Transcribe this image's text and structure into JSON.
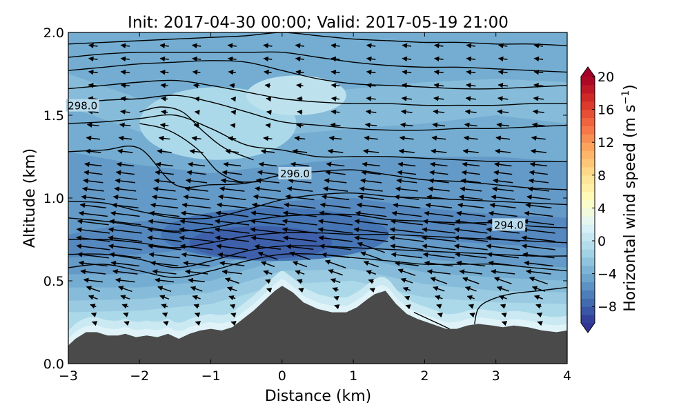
{
  "chart_data": {
    "type": "contour",
    "title": "Init: 2017-04-30 00:00; Valid: 2017-05-19 21:00",
    "xlabel": "Distance (km)",
    "ylabel": "Altitude (km)",
    "xlim": [
      -3,
      4
    ],
    "ylim": [
      0,
      2
    ],
    "xticks": [
      -3,
      -2,
      -1,
      0,
      1,
      2,
      3,
      4
    ],
    "xtick_labels": [
      "−3",
      "−2",
      "−1",
      "0",
      "1",
      "2",
      "3",
      "4"
    ],
    "yticks": [
      0.0,
      0.5,
      1.0,
      1.5,
      2.0
    ],
    "ytick_labels": [
      "0.0",
      "0.5",
      "1.0",
      "1.5",
      "2.0"
    ],
    "colorbar": {
      "label_main": "Horizontal wind speed (m s",
      "label_sup": "−1",
      "label_close": ")",
      "range": [
        -10,
        20
      ],
      "ticks": [
        -8,
        -4,
        0,
        4,
        8,
        12,
        16,
        20
      ],
      "tick_labels": [
        "−8",
        "−4",
        "0",
        "4",
        "8",
        "12",
        "16",
        "20"
      ],
      "colormap": "RdYlBu_r",
      "extend": "both"
    },
    "terrain": {
      "color": "#4a4a4a",
      "profile_x": [
        -3.0,
        -2.9,
        -2.75,
        -2.6,
        -2.45,
        -2.3,
        -2.2,
        -2.05,
        -1.9,
        -1.75,
        -1.6,
        -1.45,
        -1.3,
        -1.15,
        -1.0,
        -0.85,
        -0.7,
        -0.55,
        -0.4,
        -0.25,
        -0.1,
        0.0,
        0.15,
        0.3,
        0.5,
        0.7,
        0.9,
        1.05,
        1.2,
        1.3,
        1.45,
        1.6,
        1.75,
        1.9,
        2.1,
        2.3,
        2.45,
        2.6,
        2.75,
        2.95,
        3.1,
        3.25,
        3.45,
        3.65,
        3.85,
        4.0
      ],
      "profile_z": [
        0.11,
        0.15,
        0.19,
        0.19,
        0.17,
        0.17,
        0.18,
        0.16,
        0.17,
        0.16,
        0.18,
        0.15,
        0.18,
        0.2,
        0.21,
        0.2,
        0.22,
        0.27,
        0.32,
        0.38,
        0.44,
        0.47,
        0.43,
        0.37,
        0.33,
        0.31,
        0.31,
        0.34,
        0.39,
        0.42,
        0.44,
        0.36,
        0.3,
        0.27,
        0.24,
        0.21,
        0.21,
        0.23,
        0.24,
        0.23,
        0.22,
        0.23,
        0.22,
        0.2,
        0.19,
        0.2
      ]
    },
    "wind_fill": {
      "levels": [
        -10,
        -9,
        -8,
        -7,
        -6,
        -5,
        -4,
        -3,
        -2,
        -1,
        0,
        1,
        2
      ],
      "layers": [
        {
          "value": -1,
          "top_x": [
            -3.0,
            -2.0,
            -1.0,
            0.0,
            1.0,
            2.0,
            3.0,
            4.0
          ],
          "top_z": [
            0.31,
            0.32,
            0.36,
            0.48,
            0.5,
            0.4,
            0.37,
            0.36
          ]
        },
        {
          "value": -2,
          "top_x": [
            -3.0,
            -2.0,
            -1.0,
            0.0,
            1.0,
            2.0,
            3.0,
            4.0
          ],
          "top_z": [
            0.38,
            0.39,
            0.43,
            0.56,
            0.57,
            0.48,
            0.44,
            0.43
          ]
        },
        {
          "value": -3,
          "top_x": [
            -3.0,
            -2.0,
            -1.0,
            0.0,
            1.0,
            2.0,
            3.0,
            4.0
          ],
          "top_z": [
            0.46,
            0.46,
            0.5,
            0.63,
            0.65,
            0.55,
            0.52,
            0.5
          ]
        },
        {
          "value": -4,
          "top_x": [
            -3.0,
            -2.0,
            -1.0,
            0.0,
            1.0,
            2.0,
            3.0,
            4.0
          ],
          "top_z": [
            0.54,
            0.54,
            0.58,
            0.72,
            0.73,
            0.63,
            0.6,
            0.58
          ]
        },
        {
          "value": -5,
          "top_x": [
            -3.0,
            -2.0,
            -1.0,
            0.0,
            1.0,
            2.0,
            3.0,
            4.0
          ],
          "top_z": [
            0.64,
            0.66,
            0.7,
            0.82,
            0.84,
            0.75,
            0.72,
            0.7
          ]
        },
        {
          "value": -6,
          "top_x": [
            -3.0,
            -2.0,
            -1.0,
            0.0,
            1.0,
            2.0,
            3.0,
            4.0
          ],
          "top_z": [
            0.78,
            0.86,
            0.9,
            0.98,
            1.0,
            0.94,
            0.9,
            0.88
          ]
        }
      ],
      "upper": [
        {
          "value": -5,
          "top_x": [
            -3.0,
            -2.0,
            -1.0,
            0.0,
            1.0,
            2.0,
            3.0,
            4.0
          ],
          "top_z": [
            1.28,
            1.2,
            1.15,
            1.2,
            1.24,
            1.25,
            1.25,
            1.22
          ]
        },
        {
          "value": -4,
          "top_x": [
            -3.0,
            -2.0,
            -1.0,
            0.0,
            1.0,
            2.0,
            3.0,
            4.0
          ],
          "top_z": [
            1.55,
            1.4,
            1.35,
            1.38,
            1.42,
            1.45,
            1.5,
            1.45
          ]
        },
        {
          "value": -3,
          "top_x": [
            -3.0,
            -2.0,
            -1.0,
            0.0,
            1.0,
            2.0,
            3.0,
            4.0
          ],
          "top_z": [
            1.75,
            1.6,
            1.58,
            1.62,
            1.66,
            1.7,
            1.72,
            1.7
          ]
        },
        {
          "value": -4,
          "top_x": [
            -3.0,
            -2.0,
            -1.0,
            0.0,
            1.0,
            2.0,
            3.0,
            4.0
          ],
          "top_z": [
            2.0,
            2.0,
            2.0,
            2.0,
            2.0,
            2.0,
            2.0,
            2.0
          ]
        }
      ],
      "calm_patches": [
        {
          "value": -1,
          "cx": -0.9,
          "cz": 1.45,
          "rx": 1.1,
          "rz": 0.22
        },
        {
          "value": 0,
          "cx": 0.2,
          "cz": 1.62,
          "rx": 0.7,
          "rz": 0.12
        }
      ],
      "core": [
        {
          "value": -7,
          "cx": -0.1,
          "cz": 0.78,
          "rx": 1.6,
          "rz": 0.16
        },
        {
          "value": -8,
          "cx": -0.3,
          "cz": 0.73,
          "rx": 1.0,
          "rz": 0.1
        }
      ],
      "near_surface_max": 2
    },
    "isentropes": {
      "unit": "K",
      "x": [
        -3.0,
        -2.5,
        -2.0,
        -1.5,
        -1.0,
        -0.5,
        0.0,
        0.5,
        1.0,
        1.5,
        2.0,
        2.5,
        3.0,
        3.5,
        4.0
      ],
      "lines": [
        {
          "z": [
            0.58,
            0.6,
            0.56,
            0.52,
            0.56,
            0.62,
            0.66,
            0.66,
            0.64,
            0.62,
            0.6,
            0.6,
            0.6,
            0.58,
            0.56
          ]
        },
        {
          "z": [
            0.66,
            0.66,
            0.63,
            0.58,
            0.62,
            0.68,
            0.71,
            0.71,
            0.7,
            0.69,
            0.68,
            0.67,
            0.66,
            0.65,
            0.65
          ]
        },
        {
          "z": [
            0.75,
            0.75,
            0.73,
            0.7,
            0.73,
            0.77,
            0.79,
            0.79,
            0.78,
            0.78,
            0.77,
            0.76,
            0.75,
            0.74,
            0.73
          ]
        },
        {
          "z": [
            0.88,
            0.86,
            0.83,
            0.8,
            0.82,
            0.86,
            0.89,
            0.9,
            0.9,
            0.87,
            0.86,
            0.85,
            0.85,
            0.83,
            0.82
          ]
        },
        {
          "z": [
            0.98,
            0.97,
            0.92,
            0.88,
            0.88,
            0.93,
            0.99,
            1.02,
            1.03,
            1.01,
            1.0,
            0.99,
            0.98,
            0.97,
            0.96
          ]
        },
        {
          "z": [
            1.28,
            1.29,
            1.3,
            1.08,
            1.08,
            1.09,
            1.14,
            1.16,
            1.17,
            1.14,
            1.11,
            1.1,
            1.08,
            1.06,
            1.05
          ]
        },
        {
          "z": [
            1.45,
            1.46,
            1.48,
            1.5,
            1.42,
            1.32,
            1.29,
            1.25,
            1.25,
            1.25,
            1.24,
            1.23,
            1.22,
            1.22,
            1.22
          ]
        },
        {
          "z": [
            1.57,
            1.59,
            1.6,
            1.62,
            1.58,
            1.52,
            1.46,
            1.44,
            1.42,
            1.41,
            1.41,
            1.42,
            1.42,
            1.43,
            1.44
          ]
        },
        {
          "z": [
            1.66,
            1.68,
            1.7,
            1.71,
            1.68,
            1.64,
            1.6,
            1.58,
            1.57,
            1.57,
            1.56,
            1.56,
            1.56,
            1.57,
            1.57
          ]
        },
        {
          "z": [
            1.77,
            1.79,
            1.81,
            1.82,
            1.83,
            1.82,
            1.77,
            1.72,
            1.69,
            1.68,
            1.67,
            1.66,
            1.66,
            1.67,
            1.68
          ]
        },
        {
          "z": [
            1.85,
            1.87,
            1.88,
            1.88,
            1.88,
            1.88,
            1.88,
            1.85,
            1.82,
            1.8,
            1.79,
            1.79,
            1.78,
            1.77,
            1.76
          ]
        },
        {
          "z": [
            1.93,
            1.94,
            1.95,
            1.96,
            1.97,
            1.98,
            2.0,
            1.98,
            1.96,
            1.95,
            1.94,
            1.94,
            1.93,
            1.93,
            1.92
          ]
        }
      ],
      "slope_segments": [
        {
          "x": [
            -2.0,
            -1.7,
            -1.4,
            -1.1,
            -0.8,
            -0.4
          ],
          "z": [
            1.52,
            1.55,
            1.52,
            1.4,
            1.3,
            1.23
          ]
        },
        {
          "x": [
            -2.0,
            -1.6,
            -1.2,
            -0.9,
            -0.6,
            -0.3
          ],
          "z": [
            1.45,
            1.41,
            1.3,
            1.16,
            1.1,
            1.1
          ]
        },
        {
          "x": [
            1.85,
            2.1,
            2.35
          ],
          "z": [
            0.31,
            0.26,
            0.21
          ]
        },
        {
          "x": [
            2.7,
            2.75,
            2.9,
            3.2,
            3.6,
            4.0
          ],
          "z": [
            0.24,
            0.33,
            0.38,
            0.42,
            0.44,
            0.46
          ]
        }
      ],
      "labels": [
        {
          "text": "298.0",
          "x": -2.8,
          "z": 1.56
        },
        {
          "text": "296.0",
          "x": 0.18,
          "z": 1.15
        },
        {
          "text": "294.0",
          "x": 3.18,
          "z": 0.84
        }
      ]
    },
    "wind_vectors": {
      "columns_x": [
        -2.65,
        -2.2,
        -1.65,
        -1.2,
        -0.7,
        -0.2,
        0.25,
        0.75,
        1.25,
        1.75,
        2.2,
        2.65,
        3.1,
        3.6
      ],
      "rows_z": [
        0.25,
        0.3,
        0.35,
        0.4,
        0.45,
        0.5,
        0.55,
        0.6,
        0.65,
        0.7,
        0.75,
        0.8,
        0.85,
        0.9,
        0.95,
        1.0,
        1.05,
        1.1,
        1.15,
        1.2,
        1.28,
        1.36,
        1.44,
        1.52,
        1.6,
        1.68,
        1.76,
        1.84,
        1.92
      ],
      "direction": "westward"
    }
  }
}
